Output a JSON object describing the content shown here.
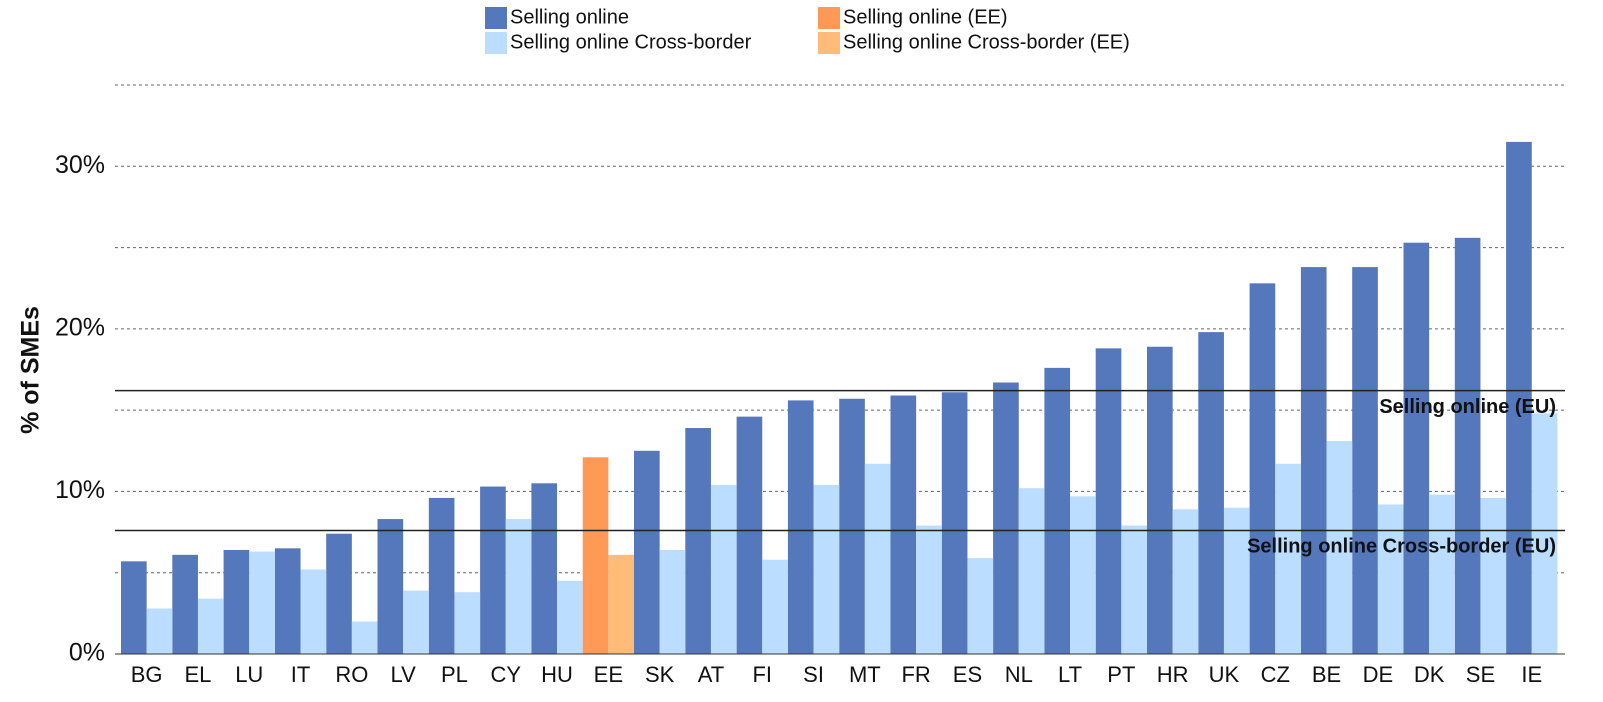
{
  "chart_data": {
    "type": "bar",
    "y_label": "% of SMEs",
    "categories": [
      "BG",
      "EL",
      "LU",
      "IT",
      "RO",
      "LV",
      "PL",
      "CY",
      "HU",
      "EE",
      "SK",
      "AT",
      "FI",
      "SI",
      "MT",
      "FR",
      "ES",
      "NL",
      "LT",
      "PT",
      "HR",
      "UK",
      "CZ",
      "BE",
      "DE",
      "DK",
      "SE",
      "IE"
    ],
    "series": [
      {
        "name": "Selling online",
        "color": "#5577bb",
        "values": [
          5.7,
          6.1,
          6.4,
          6.5,
          7.4,
          8.3,
          9.6,
          10.3,
          10.5,
          null,
          12.5,
          13.9,
          14.6,
          15.6,
          15.7,
          15.9,
          16.1,
          16.7,
          17.6,
          18.8,
          18.9,
          19.8,
          22.8,
          23.8,
          23.8,
          25.3,
          25.6,
          31.5
        ]
      },
      {
        "name": "Selling online Cross-border",
        "color": "#bbddff",
        "values": [
          2.8,
          3.4,
          6.3,
          5.2,
          2.0,
          3.9,
          3.8,
          8.3,
          4.5,
          null,
          6.4,
          10.4,
          5.8,
          10.4,
          11.7,
          7.9,
          5.9,
          10.2,
          9.7,
          7.9,
          8.9,
          9.0,
          11.7,
          13.1,
          9.2,
          9.8,
          9.6,
          14.8
        ]
      },
      {
        "name": "Selling online (EE)",
        "color": "#ff9955",
        "values": [
          null,
          null,
          null,
          null,
          null,
          null,
          null,
          null,
          null,
          12.1,
          null,
          null,
          null,
          null,
          null,
          null,
          null,
          null,
          null,
          null,
          null,
          null,
          null,
          null,
          null,
          null,
          null,
          null
        ]
      },
      {
        "name": "Selling online Cross-border (EE)",
        "color": "#ffbb77",
        "values": [
          null,
          null,
          null,
          null,
          null,
          null,
          null,
          null,
          null,
          6.1,
          null,
          null,
          null,
          null,
          null,
          null,
          null,
          null,
          null,
          null,
          null,
          null,
          null,
          null,
          null,
          null,
          null,
          null
        ]
      }
    ],
    "reference_lines": [
      {
        "label": "Selling online (EU)",
        "value": 16.2
      },
      {
        "label": "Selling online Cross-border (EU)",
        "value": 7.6
      }
    ],
    "ylim": [
      0,
      35
    ],
    "yticks": [
      {
        "value": 0,
        "label": "0%"
      },
      {
        "value": 10,
        "label": "10%"
      },
      {
        "value": 20,
        "label": "20%"
      },
      {
        "value": 30,
        "label": "30%"
      }
    ],
    "minor_yticks": [
      5,
      15,
      25,
      35
    ],
    "grid": true
  }
}
